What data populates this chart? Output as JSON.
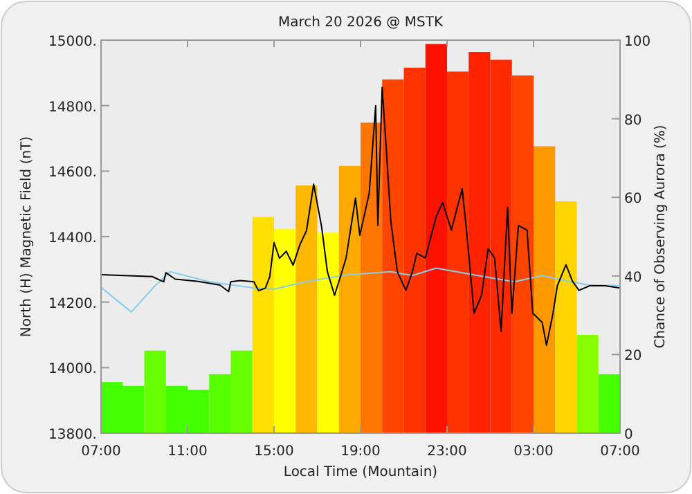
{
  "chart_data": {
    "type": "line",
    "title": "March 20 2026 @ MSTK",
    "xlabel": "Local Time (Mountain)",
    "ylabel": "North (H) Magnetic Field (nT)",
    "y2label": "Chance of Observing Aurora (%)",
    "xlim": [
      "2026-03-20T07:00",
      "2026-03-21T07:00"
    ],
    "xticks": [
      {
        "value": "2026-03-20T07:00",
        "label": "07:00"
      },
      {
        "value": "2026-03-20T11:00",
        "label": "11:00"
      },
      {
        "value": "2026-03-20T15:00",
        "label": "15:00"
      },
      {
        "value": "2026-03-20T19:00",
        "label": "19:00"
      },
      {
        "value": "2026-03-20T23:00",
        "label": "23:00"
      },
      {
        "value": "2026-03-21T03:00",
        "label": "03:00"
      },
      {
        "value": "2026-03-21T07:00",
        "label": "07:00"
      }
    ],
    "ylim": [
      13800,
      15000
    ],
    "yticks": [
      {
        "value": 13800,
        "label": "13800."
      },
      {
        "value": 14000,
        "label": "14000."
      },
      {
        "value": 14200,
        "label": "14200."
      },
      {
        "value": 14400,
        "label": "14400."
      },
      {
        "value": 14600,
        "label": "14600."
      },
      {
        "value": 14800,
        "label": "14800."
      },
      {
        "value": 15000,
        "label": "15000."
      }
    ],
    "y2lim": [
      0,
      100
    ],
    "y2ticks": [
      0,
      20,
      40,
      60,
      80,
      100
    ],
    "grid": false,
    "series": [
      {
        "type": "bar",
        "axis": "y2",
        "x": [
          "2026-03-20T07:30",
          "2026-03-20T08:30",
          "2026-03-20T09:30",
          "2026-03-20T10:30",
          "2026-03-20T11:30",
          "2026-03-20T12:30",
          "2026-03-20T13:30",
          "2026-03-20T14:30",
          "2026-03-20T15:30",
          "2026-03-20T16:30",
          "2026-03-20T17:30",
          "2026-03-20T18:30",
          "2026-03-20T19:30",
          "2026-03-20T20:30",
          "2026-03-20T21:30",
          "2026-03-20T22:30",
          "2026-03-20T23:30",
          "2026-03-21T00:30",
          "2026-03-21T01:30",
          "2026-03-21T02:30",
          "2026-03-21T03:30",
          "2026-03-21T04:30",
          "2026-03-21T05:30",
          "2026-03-21T06:30"
        ],
        "values": [
          13,
          12,
          21,
          12,
          11,
          15,
          21,
          55,
          52,
          63,
          51,
          68,
          79,
          90,
          93,
          99,
          92,
          97,
          95,
          91,
          73,
          59,
          25,
          15
        ],
        "colors": [
          "#44ff00",
          "#44ff00",
          "#66ff00",
          "#44ff00",
          "#44ff00",
          "#55ff00",
          "#66ff00",
          "#ffe000",
          "#ffff00",
          "#ffb800",
          "#ffff00",
          "#ffaa00",
          "#ff7700",
          "#ff4400",
          "#ff3300",
          "#ff1100",
          "#ff3300",
          "#ff2200",
          "#ff2a00",
          "#ff4400",
          "#ff9900",
          "#ffd400",
          "#88ff00",
          "#44ff00"
        ]
      },
      {
        "color": "#88ccee",
        "x": [
          "2026-03-20T07:00",
          "2026-03-20T08:24",
          "2026-03-20T09:30",
          "2026-03-20T10:12",
          "2026-03-20T12:00",
          "2026-03-20T14:04",
          "2026-03-20T15:00",
          "2026-03-20T16:30",
          "2026-03-20T18:18",
          "2026-03-20T20:24",
          "2026-03-20T21:24",
          "2026-03-20T22:30",
          "2026-03-21T00:36",
          "2026-03-21T02:06",
          "2026-03-21T03:24",
          "2026-03-21T04:42",
          "2026-03-21T05:30",
          "2026-03-21T07:00"
        ],
        "values": [
          14245,
          14170,
          14250,
          14293,
          14262,
          14243,
          14240,
          14262,
          14283,
          14293,
          14281,
          14304,
          14279,
          14262,
          14281,
          14262,
          14253,
          14250
        ]
      },
      {
        "color": "#000000",
        "x": [
          "2026-03-20T07:00",
          "2026-03-20T08:30",
          "2026-03-20T09:22",
          "2026-03-20T09:54",
          "2026-03-20T10:00",
          "2026-03-20T10:26",
          "2026-03-20T11:30",
          "2026-03-20T12:30",
          "2026-03-20T12:54",
          "2026-03-20T13:00",
          "2026-03-20T13:25",
          "2026-03-20T14:04",
          "2026-03-20T14:17",
          "2026-03-20T14:36",
          "2026-03-20T14:48",
          "2026-03-20T15:00",
          "2026-03-20T15:15",
          "2026-03-20T15:34",
          "2026-03-20T15:53",
          "2026-03-20T16:12",
          "2026-03-20T16:30",
          "2026-03-20T16:50",
          "2026-03-20T17:12",
          "2026-03-20T17:28",
          "2026-03-20T17:48",
          "2026-03-20T18:06",
          "2026-03-20T18:20",
          "2026-03-20T18:46",
          "2026-03-20T18:58",
          "2026-03-20T19:24",
          "2026-03-20T19:42",
          "2026-03-20T19:48",
          "2026-03-20T20:00",
          "2026-03-20T20:12",
          "2026-03-20T20:24",
          "2026-03-20T20:42",
          "2026-03-20T21:06",
          "2026-03-20T21:24",
          "2026-03-20T21:36",
          "2026-03-20T22:00",
          "2026-03-20T22:30",
          "2026-03-20T22:48",
          "2026-03-20T23:12",
          "2026-03-20T23:42",
          "2026-03-20T23:54",
          "2026-03-21T00:15",
          "2026-03-21T00:36",
          "2026-03-21T00:54",
          "2026-03-21T01:12",
          "2026-03-21T01:30",
          "2026-03-21T01:48",
          "2026-03-21T02:00",
          "2026-03-21T02:18",
          "2026-03-21T02:42",
          "2026-03-21T02:58",
          "2026-03-21T03:24",
          "2026-03-21T03:36",
          "2026-03-21T03:54",
          "2026-03-21T04:06",
          "2026-03-21T04:30",
          "2026-03-21T04:48",
          "2026-03-21T05:06",
          "2026-03-21T05:36",
          "2026-03-21T06:18",
          "2026-03-21T07:00"
        ],
        "values": [
          14284,
          14280,
          14278,
          14262,
          14290,
          14270,
          14263,
          14252,
          14232,
          14262,
          14266,
          14262,
          14235,
          14243,
          14277,
          14382,
          14334,
          14355,
          14313,
          14376,
          14418,
          14560,
          14430,
          14293,
          14221,
          14284,
          14335,
          14518,
          14404,
          14532,
          14800,
          14434,
          14856,
          14659,
          14448,
          14293,
          14236,
          14293,
          14349,
          14335,
          14462,
          14504,
          14420,
          14546,
          14420,
          14166,
          14222,
          14363,
          14335,
          14110,
          14490,
          14166,
          14434,
          14420,
          14166,
          14138,
          14068,
          14166,
          14250,
          14314,
          14264,
          14236,
          14250,
          14250,
          14243
        ]
      }
    ]
  }
}
